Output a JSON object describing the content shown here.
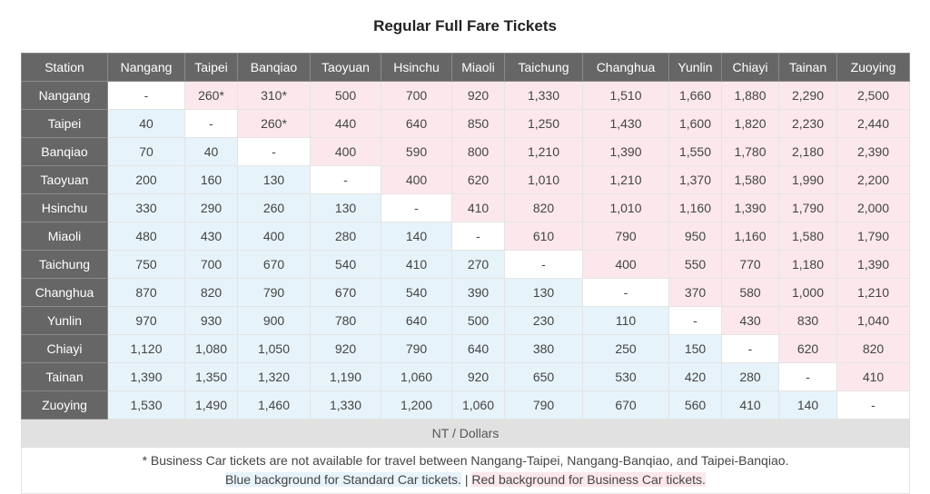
{
  "title": "Regular Full Fare Tickets",
  "header_corner": "Station",
  "stations": [
    "Nangang",
    "Taipei",
    "Banqiao",
    "Taoyuan",
    "Hsinchu",
    "Miaoli",
    "Taichung",
    "Changhua",
    "Yunlin",
    "Chiayi",
    "Tainan",
    "Zuoying"
  ],
  "fares": [
    [
      "-",
      "260*",
      "310*",
      "500",
      "700",
      "920",
      "1,330",
      "1,510",
      "1,660",
      "1,880",
      "2,290",
      "2,500"
    ],
    [
      "40",
      "-",
      "260*",
      "440",
      "640",
      "850",
      "1,250",
      "1,430",
      "1,600",
      "1,820",
      "2,230",
      "2,440"
    ],
    [
      "70",
      "40",
      "-",
      "400",
      "590",
      "800",
      "1,210",
      "1,390",
      "1,550",
      "1,780",
      "2,180",
      "2,390"
    ],
    [
      "200",
      "160",
      "130",
      "-",
      "400",
      "620",
      "1,010",
      "1,210",
      "1,370",
      "1,580",
      "1,990",
      "2,200"
    ],
    [
      "330",
      "290",
      "260",
      "130",
      "-",
      "410",
      "820",
      "1,010",
      "1,160",
      "1,390",
      "1,790",
      "2,000"
    ],
    [
      "480",
      "430",
      "400",
      "280",
      "140",
      "-",
      "610",
      "790",
      "950",
      "1,160",
      "1,580",
      "1,790"
    ],
    [
      "750",
      "700",
      "670",
      "540",
      "410",
      "270",
      "-",
      "400",
      "550",
      "770",
      "1,180",
      "1,390"
    ],
    [
      "870",
      "820",
      "790",
      "670",
      "540",
      "390",
      "130",
      "-",
      "370",
      "580",
      "1,000",
      "1,210"
    ],
    [
      "970",
      "930",
      "900",
      "780",
      "640",
      "500",
      "230",
      "110",
      "-",
      "430",
      "830",
      "1,040"
    ],
    [
      "1,120",
      "1,080",
      "1,050",
      "920",
      "790",
      "640",
      "380",
      "250",
      "150",
      "-",
      "620",
      "820"
    ],
    [
      "1,390",
      "1,350",
      "1,320",
      "1,190",
      "1,060",
      "920",
      "650",
      "530",
      "420",
      "280",
      "-",
      "410"
    ],
    [
      "1,530",
      "1,490",
      "1,460",
      "1,330",
      "1,200",
      "1,060",
      "790",
      "670",
      "560",
      "410",
      "140",
      "-"
    ]
  ],
  "unit_label": "NT / Dollars",
  "footnote": "* Business Car tickets are not available for travel between Nangang-Taipei, Nangang-Banqiao, and Taipei-Banqiao.",
  "legend": {
    "standard": "Blue background for Standard Car tickets.",
    "separator": " | ",
    "business": "Red background for Business Car tickets."
  },
  "colors": {
    "header_bg": "#666666",
    "standard_bg": "#e7f3fb",
    "business_bg": "#fce8ec",
    "unit_bg": "#e1e1e1"
  }
}
